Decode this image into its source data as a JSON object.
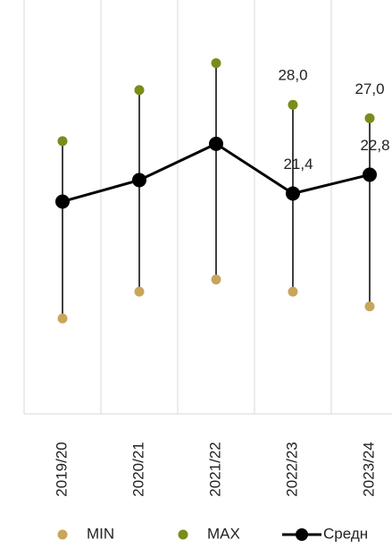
{
  "chart_data": {
    "type": "line",
    "categories": [
      "2019/20",
      "2020/21",
      "2021/22",
      "2022/23",
      "2023/24"
    ],
    "series": [
      {
        "name": "MIN",
        "color": "#c9a55c",
        "mode": "markers",
        "values": [
          12.1,
          14.1,
          15.0,
          14.1,
          13.0
        ]
      },
      {
        "name": "MAX",
        "color": "#7a8c1a",
        "mode": "markers",
        "values": [
          25.3,
          29.1,
          31.1,
          28.0,
          27.0
        ],
        "value_labels": [
          null,
          null,
          null,
          "28,0",
          "27,0"
        ]
      },
      {
        "name": "Средн",
        "color": "#000000",
        "mode": "line",
        "values": [
          20.8,
          22.4,
          25.1,
          21.4,
          22.8
        ],
        "value_labels": [
          null,
          null,
          null,
          "21,4",
          "22,8"
        ]
      }
    ],
    "ylim": [
      5,
      35.8
    ],
    "grid": true,
    "legend": "bottom"
  }
}
